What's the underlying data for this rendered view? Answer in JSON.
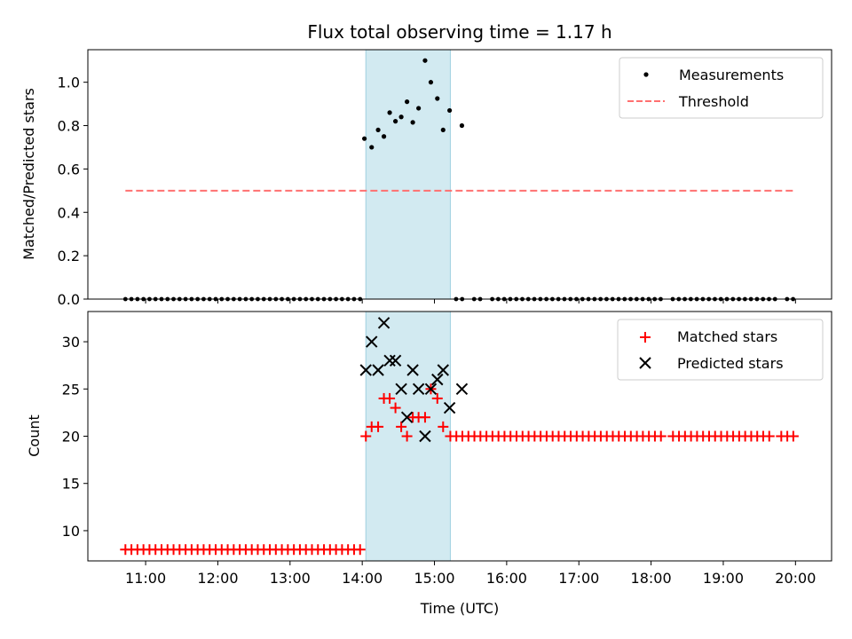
{
  "chart_data": [
    {
      "type": "scatter",
      "title": "Flux total observing time = 1.17 h",
      "xlabel": "",
      "ylabel": "Matched/Predicted stars",
      "ylim": [
        0,
        1.15
      ],
      "yticks": [
        0.0,
        0.2,
        0.4,
        0.6,
        0.8,
        1.0
      ],
      "ytick_labels": [
        "0.0",
        "0.2",
        "0.4",
        "0.6",
        "0.8",
        "1.0"
      ],
      "xlim_hours": [
        10.2,
        20.5
      ],
      "highlight_span_hours": [
        14.05,
        15.22
      ],
      "highlight_color": "#add8e6",
      "grid": false,
      "legend": {
        "placement": "upper right",
        "entries": [
          {
            "label": "Measurements",
            "marker": "dot",
            "color": "#000000"
          },
          {
            "label": "Threshold",
            "marker": "dashed-line",
            "color": "#ff7070"
          }
        ]
      },
      "series": [
        {
          "name": "Measurements",
          "marker": "dot",
          "color": "#000000",
          "x_hours": [
            14.03,
            14.13,
            14.22,
            14.3,
            14.38,
            14.46,
            14.54,
            14.62,
            14.7,
            14.78,
            14.87,
            14.95,
            15.04,
            15.12,
            15.21,
            15.38
          ],
          "y": [
            0.74,
            0.7,
            0.78,
            0.75,
            0.86,
            0.82,
            0.84,
            0.91,
            0.815,
            0.88,
            1.1,
            1.0,
            0.925,
            0.78,
            0.87,
            0.8
          ],
          "zero_x_start_hours": [
            10.72,
            14.0
          ],
          "zero_x_start2_hours": [
            15.3,
            20.0
          ],
          "zero_step_minutes": 5,
          "zero_gaps_hours": [
            [
              15.42,
              15.48
            ],
            [
              15.68,
              15.75
            ],
            [
              18.15,
              18.25
            ],
            [
              19.75,
              19.8
            ]
          ]
        },
        {
          "name": "Threshold",
          "style": "dashed",
          "color": "#ff7070",
          "x_hours": [
            10.72,
            20.0
          ],
          "y": [
            0.5,
            0.5
          ]
        }
      ]
    },
    {
      "type": "scatter",
      "xlabel": "Time (UTC)",
      "ylabel": "Count",
      "ylim": [
        6.8,
        33.2
      ],
      "yticks": [
        10,
        15,
        20,
        25,
        30
      ],
      "ytick_labels": [
        "10",
        "15",
        "20",
        "25",
        "30"
      ],
      "xlim_hours": [
        10.2,
        20.5
      ],
      "xticks_hours": [
        11,
        12,
        13,
        14,
        15,
        16,
        17,
        18,
        19,
        20
      ],
      "xtick_labels": [
        "11:00",
        "12:00",
        "13:00",
        "14:00",
        "15:00",
        "16:00",
        "17:00",
        "18:00",
        "19:00",
        "20:00"
      ],
      "highlight_span_hours": [
        14.05,
        15.22
      ],
      "highlight_color": "#add8e6",
      "grid": false,
      "legend": {
        "placement": "upper right",
        "entries": [
          {
            "label": "Matched stars",
            "marker": "plus",
            "color": "#ff0000"
          },
          {
            "label": "Predicted stars",
            "marker": "x",
            "color": "#000000"
          }
        ]
      },
      "series": [
        {
          "name": "Matched stars",
          "marker": "plus",
          "color": "#ff0000",
          "before_value": 8,
          "before_range_hours": [
            10.72,
            14.0
          ],
          "after_value": 20,
          "after_range_hours": [
            15.22,
            20.0
          ],
          "step_minutes": 5,
          "after_gaps_hours": [
            [
              18.15,
              18.25
            ],
            [
              19.7,
              19.75
            ]
          ],
          "x_hours": [
            14.05,
            14.13,
            14.22,
            14.3,
            14.38,
            14.46,
            14.54,
            14.62,
            14.7,
            14.78,
            14.87,
            14.95,
            15.04,
            15.12
          ],
          "y": [
            20,
            21,
            21,
            24,
            24,
            23,
            21,
            20,
            22,
            22,
            22,
            25,
            24,
            21
          ]
        },
        {
          "name": "Predicted stars",
          "marker": "x",
          "color": "#000000",
          "x_hours": [
            14.05,
            14.13,
            14.22,
            14.3,
            14.38,
            14.46,
            14.54,
            14.62,
            14.7,
            14.78,
            14.87,
            14.95,
            15.04,
            15.12,
            15.21,
            15.38
          ],
          "y": [
            27,
            30,
            27,
            32,
            28,
            28,
            25,
            22,
            27,
            25,
            20,
            25,
            26,
            27,
            23,
            25
          ]
        }
      ]
    }
  ]
}
